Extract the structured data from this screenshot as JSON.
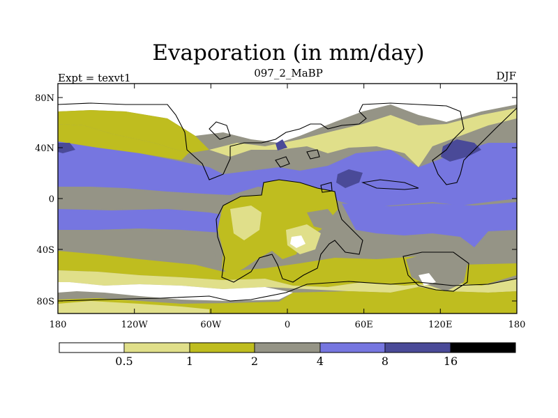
{
  "title": "Evaporation (in mm/day)",
  "experiment_label": "Expt = texvt1",
  "period_label": "097_2_MaBP",
  "season_label": "DJF",
  "lat_labels": [
    "80N",
    "40N",
    "0",
    "40S",
    "80S"
  ],
  "lon_labels": [
    "180",
    "120W",
    "60W",
    "0",
    "60E",
    "120E",
    "180"
  ],
  "colorbar": {
    "labels": [
      "0.5",
      "1",
      "2",
      "4",
      "8",
      "16"
    ],
    "colors": [
      "#ffffff",
      "#e0df8a",
      "#bfbd1f",
      "#959486",
      "#7676e0",
      "#4a4a98",
      "#000000"
    ]
  }
}
